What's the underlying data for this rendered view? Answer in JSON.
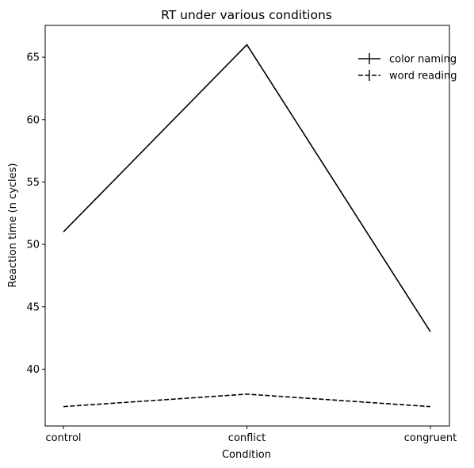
{
  "chart_data": {
    "type": "line",
    "title": "RT under various conditions",
    "xlabel": "Condition",
    "ylabel": "Reaction time (n cycles)",
    "categories": [
      "control",
      "conflict",
      "congruent"
    ],
    "ylim": [
      35.45,
      67.55
    ],
    "yticks": [
      40,
      45,
      50,
      55,
      60,
      65
    ],
    "grid": false,
    "legend_position": "top-right",
    "series": [
      {
        "name": "color naming",
        "values": [
          51,
          66,
          43
        ],
        "style": "solid",
        "color": "#000000"
      },
      {
        "name": "word reading",
        "values": [
          37,
          38,
          37
        ],
        "style": "dashed",
        "color": "#000000"
      }
    ]
  }
}
